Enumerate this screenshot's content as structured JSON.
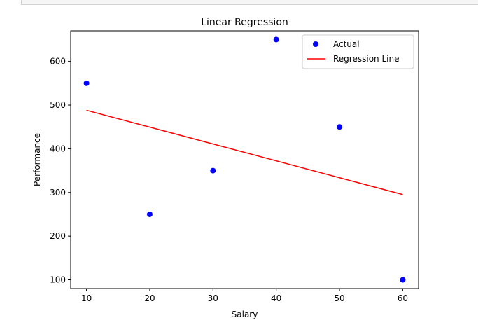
{
  "chart_data": {
    "type": "scatter",
    "title": "Linear Regression",
    "xlabel": "Salary",
    "ylabel": "Performance",
    "xlim": [
      7.5,
      62.5
    ],
    "ylim": [
      80,
      670
    ],
    "xticks": [
      10,
      20,
      30,
      40,
      50,
      60
    ],
    "yticks": [
      100,
      200,
      300,
      400,
      500,
      600
    ],
    "grid": false,
    "legend_position": "top-right",
    "series": [
      {
        "name": "Actual",
        "kind": "scatter",
        "color": "#0000ff",
        "x": [
          10,
          20,
          30,
          40,
          50,
          60
        ],
        "y": [
          550,
          250,
          350,
          650,
          450,
          100
        ]
      },
      {
        "name": "Regression Line",
        "kind": "line",
        "color": "#ff0000",
        "x": [
          10,
          60
        ],
        "y": [
          488.1,
          295.2
        ]
      }
    ]
  }
}
